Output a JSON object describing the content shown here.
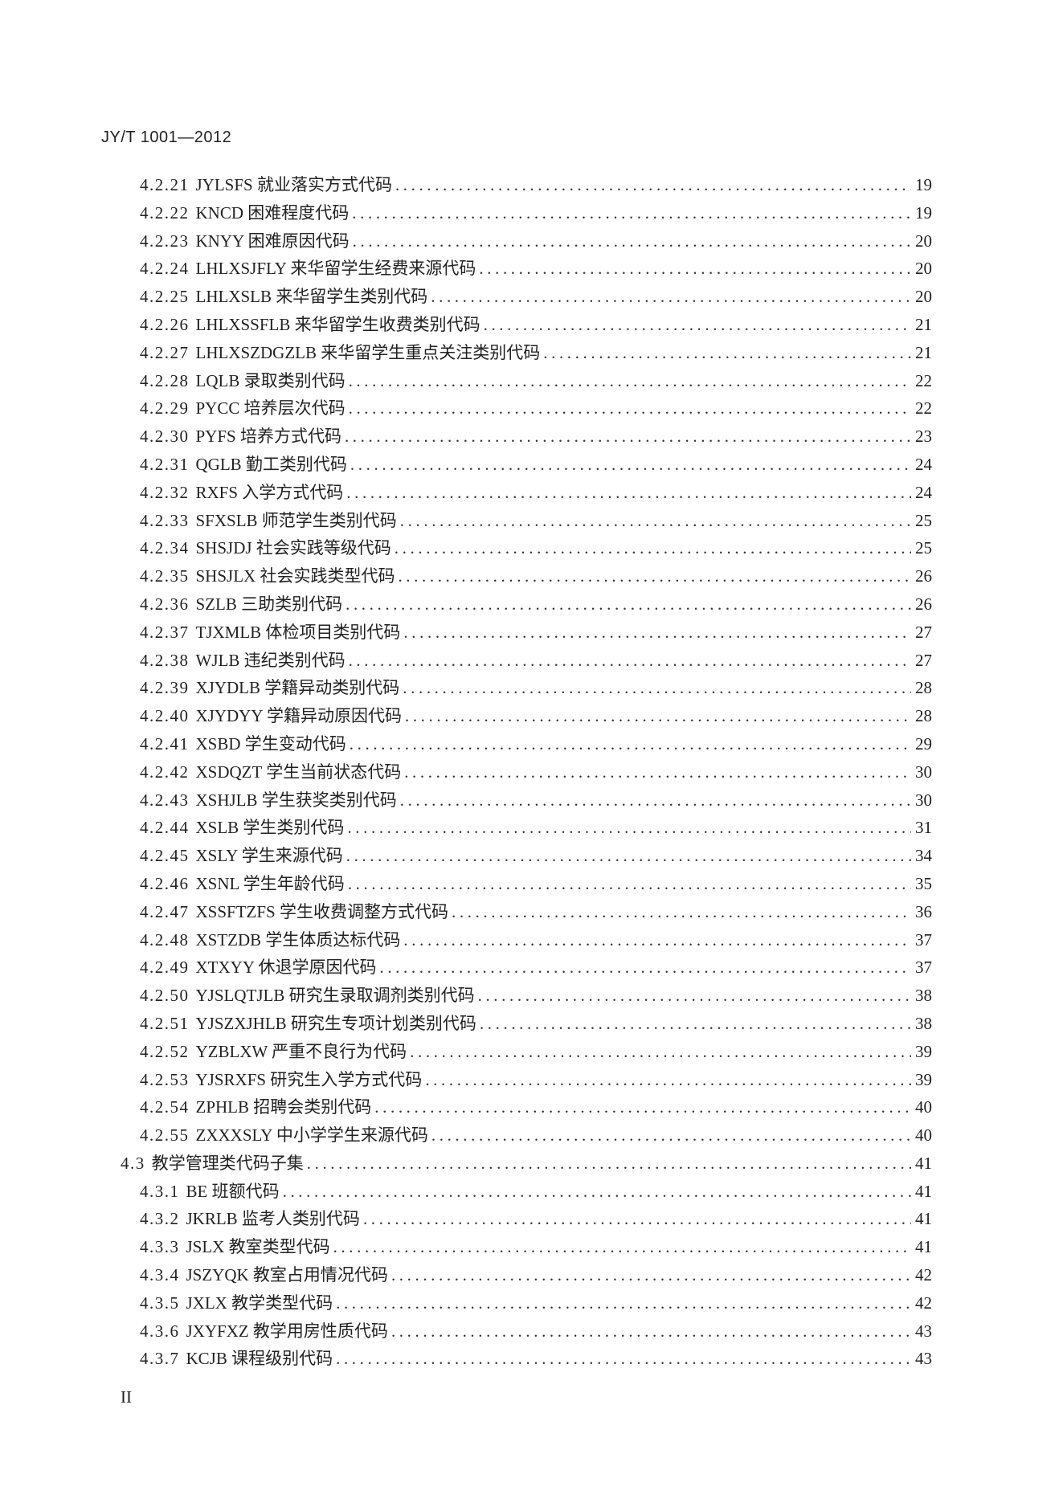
{
  "header": {
    "doc_code": "JY/T 1001—2012"
  },
  "toc": [
    {
      "level": 3,
      "number": "4.2.21",
      "title": "JYLSFS 就业落实方式代码",
      "page": "19"
    },
    {
      "level": 3,
      "number": "4.2.22",
      "title": "KNCD 困难程度代码",
      "page": "19"
    },
    {
      "level": 3,
      "number": "4.2.23",
      "title": "KNYY 困难原因代码",
      "page": "20"
    },
    {
      "level": 3,
      "number": "4.2.24",
      "title": "LHLXSJFLY 来华留学生经费来源代码",
      "page": "20"
    },
    {
      "level": 3,
      "number": "4.2.25",
      "title": "LHLXSLB 来华留学生类别代码",
      "page": "20"
    },
    {
      "level": 3,
      "number": "4.2.26",
      "title": "LHLXSSFLB 来华留学生收费类别代码",
      "page": "21"
    },
    {
      "level": 3,
      "number": "4.2.27",
      "title": "LHLXSZDGZLB 来华留学生重点关注类别代码",
      "page": "21"
    },
    {
      "level": 3,
      "number": "4.2.28",
      "title": "LQLB 录取类别代码",
      "page": "22"
    },
    {
      "level": 3,
      "number": "4.2.29",
      "title": "PYCC 培养层次代码",
      "page": "22"
    },
    {
      "level": 3,
      "number": "4.2.30",
      "title": "PYFS 培养方式代码",
      "page": "23"
    },
    {
      "level": 3,
      "number": "4.2.31",
      "title": "QGLB 勤工类别代码",
      "page": "24"
    },
    {
      "level": 3,
      "number": "4.2.32",
      "title": "RXFS 入学方式代码",
      "page": "24"
    },
    {
      "level": 3,
      "number": "4.2.33",
      "title": "SFXSLB 师范学生类别代码",
      "page": "25"
    },
    {
      "level": 3,
      "number": "4.2.34",
      "title": "SHSJDJ 社会实践等级代码",
      "page": "25"
    },
    {
      "level": 3,
      "number": "4.2.35",
      "title": "SHSJLX 社会实践类型代码",
      "page": "26"
    },
    {
      "level": 3,
      "number": "4.2.36",
      "title": "SZLB 三助类别代码",
      "page": "26"
    },
    {
      "level": 3,
      "number": "4.2.37",
      "title": "TJXMLB 体检项目类别代码",
      "page": "27"
    },
    {
      "level": 3,
      "number": "4.2.38",
      "title": "WJLB 违纪类别代码",
      "page": "27"
    },
    {
      "level": 3,
      "number": "4.2.39",
      "title": "XJYDLB 学籍异动类别代码",
      "page": "28"
    },
    {
      "level": 3,
      "number": "4.2.40",
      "title": "XJYDYY 学籍异动原因代码",
      "page": "28"
    },
    {
      "level": 3,
      "number": "4.2.41",
      "title": "XSBD 学生变动代码",
      "page": "29"
    },
    {
      "level": 3,
      "number": "4.2.42",
      "title": "XSDQZT 学生当前状态代码",
      "page": "30"
    },
    {
      "level": 3,
      "number": "4.2.43",
      "title": "XSHJLB 学生获奖类别代码",
      "page": "30"
    },
    {
      "level": 3,
      "number": "4.2.44",
      "title": "XSLB 学生类别代码",
      "page": "31"
    },
    {
      "level": 3,
      "number": "4.2.45",
      "title": "XSLY 学生来源代码",
      "page": "34"
    },
    {
      "level": 3,
      "number": "4.2.46",
      "title": "XSNL 学生年龄代码",
      "page": "35"
    },
    {
      "level": 3,
      "number": "4.2.47",
      "title": "XSSFTZFS 学生收费调整方式代码",
      "page": "36"
    },
    {
      "level": 3,
      "number": "4.2.48",
      "title": "XSTZDB 学生体质达标代码",
      "page": "37"
    },
    {
      "level": 3,
      "number": "4.2.49",
      "title": "XTXYY 休退学原因代码",
      "page": "37"
    },
    {
      "level": 3,
      "number": "4.2.50",
      "title": "YJSLQTJLB 研究生录取调剂类别代码",
      "page": "38"
    },
    {
      "level": 3,
      "number": "4.2.51",
      "title": "YJSZXJHLB 研究生专项计划类别代码",
      "page": "38"
    },
    {
      "level": 3,
      "number": "4.2.52",
      "title": "YZBLXW 严重不良行为代码",
      "page": "39"
    },
    {
      "level": 3,
      "number": "4.2.53",
      "title": "YJSRXFS 研究生入学方式代码",
      "page": "39"
    },
    {
      "level": 3,
      "number": "4.2.54",
      "title": "ZPHLB 招聘会类别代码",
      "page": "40"
    },
    {
      "level": 3,
      "number": "4.2.55",
      "title": "ZXXXSLY 中小学学生来源代码",
      "page": "40"
    },
    {
      "level": 2,
      "number": "4.3",
      "title": "教学管理类代码子集",
      "page": "41"
    },
    {
      "level": 3,
      "number": "4.3.1",
      "title": "BE 班额代码",
      "page": "41"
    },
    {
      "level": 3,
      "number": "4.3.2",
      "title": "JKRLB 监考人类别代码",
      "page": "41"
    },
    {
      "level": 3,
      "number": "4.3.3",
      "title": "JSLX 教室类型代码",
      "page": "41"
    },
    {
      "level": 3,
      "number": "4.3.4",
      "title": "JSZYQK 教室占用情况代码",
      "page": "42"
    },
    {
      "level": 3,
      "number": "4.3.5",
      "title": "JXLX 教学类型代码",
      "page": "42"
    },
    {
      "level": 3,
      "number": "4.3.6",
      "title": "JXYFXZ 教学用房性质代码",
      "page": "43"
    },
    {
      "level": 3,
      "number": "4.3.7",
      "title": "KCJB 课程级别代码",
      "page": "43"
    }
  ],
  "footer": {
    "page_number": "II"
  }
}
